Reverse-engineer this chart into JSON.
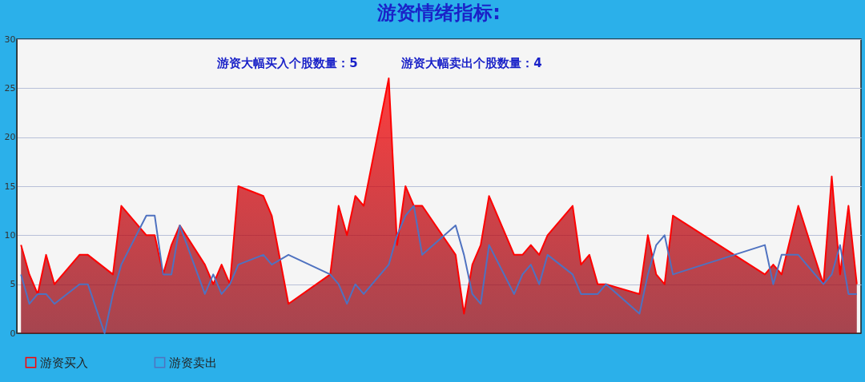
{
  "chart_data": {
    "type": "area",
    "title": "游资情绪指标:",
    "annotations": [
      "游资大幅买入个股数量：5",
      "游资大幅卖出个股数量：4"
    ],
    "categories": [
      null,
      null,
      null,
      null,
      null,
      null,
      null,
      null,
      null,
      null,
      null,
      null,
      null,
      null,
      null,
      null,
      null,
      null,
      null,
      null,
      null,
      null,
      null,
      null,
      null,
      null,
      null,
      null,
      null,
      null,
      null,
      null,
      null,
      null,
      null,
      null,
      null,
      null,
      null,
      null,
      null,
      null,
      null,
      null,
      null,
      null,
      null,
      null,
      null,
      null,
      null,
      null,
      null,
      null,
      null,
      null,
      null,
      null,
      null,
      null,
      null,
      null,
      null,
      null,
      null,
      null,
      null,
      null,
      null,
      null,
      null,
      null,
      null,
      null,
      null,
      null,
      null,
      null,
      null,
      null,
      null,
      null,
      null,
      null,
      null,
      null,
      null,
      null,
      null,
      null,
      null,
      null,
      null,
      null,
      null,
      null,
      null,
      null,
      null,
      null,
      null
    ],
    "ylim": [
      0,
      30
    ],
    "yticks": [
      0,
      5,
      10,
      15,
      20,
      25,
      30
    ],
    "grid": "y",
    "legend": "bottom",
    "tick_labels": "y",
    "series": [
      {
        "name": "游资买入",
        "type": "area",
        "color": "#ff0000",
        "values": [
          9,
          6,
          4,
          8,
          5,
          null,
          null,
          8,
          8,
          null,
          null,
          6,
          13,
          null,
          null,
          10,
          10,
          6,
          9,
          11,
          null,
          null,
          7,
          5,
          7,
          5,
          15,
          null,
          null,
          14,
          12,
          null,
          3,
          null,
          null,
          null,
          null,
          6,
          13,
          10,
          14,
          13,
          null,
          null,
          26,
          9,
          15,
          13,
          13,
          null,
          null,
          null,
          8,
          2,
          7,
          9,
          14,
          null,
          null,
          8,
          8,
          9,
          8,
          10,
          null,
          null,
          13,
          7,
          8,
          5,
          5,
          null,
          null,
          null,
          4,
          10,
          6,
          5,
          12,
          null,
          null,
          null,
          null,
          null,
          null,
          null,
          null,
          null,
          null,
          6,
          7,
          6,
          null,
          13,
          null,
          null,
          5,
          16,
          6,
          13,
          5
        ]
      },
      {
        "name": "游资卖出",
        "type": "line",
        "color": "#4f72c0",
        "values": [
          6,
          3,
          4,
          4,
          3,
          null,
          null,
          5,
          5,
          null,
          0,
          4,
          7,
          null,
          null,
          12,
          12,
          6,
          6,
          11,
          null,
          null,
          4,
          6,
          4,
          5,
          7,
          null,
          null,
          8,
          7,
          null,
          8,
          null,
          null,
          null,
          null,
          6,
          5,
          3,
          5,
          4,
          null,
          null,
          7,
          10,
          12,
          13,
          8,
          null,
          null,
          null,
          11,
          8,
          4,
          3,
          9,
          null,
          null,
          4,
          6,
          7,
          5,
          8,
          null,
          null,
          6,
          4,
          null,
          4,
          5,
          null,
          null,
          null,
          2,
          6,
          9,
          10,
          6,
          null,
          null,
          null,
          null,
          null,
          null,
          null,
          null,
          null,
          null,
          9,
          5,
          8,
          null,
          8,
          null,
          null,
          5,
          6,
          9,
          4,
          4
        ]
      }
    ]
  }
}
